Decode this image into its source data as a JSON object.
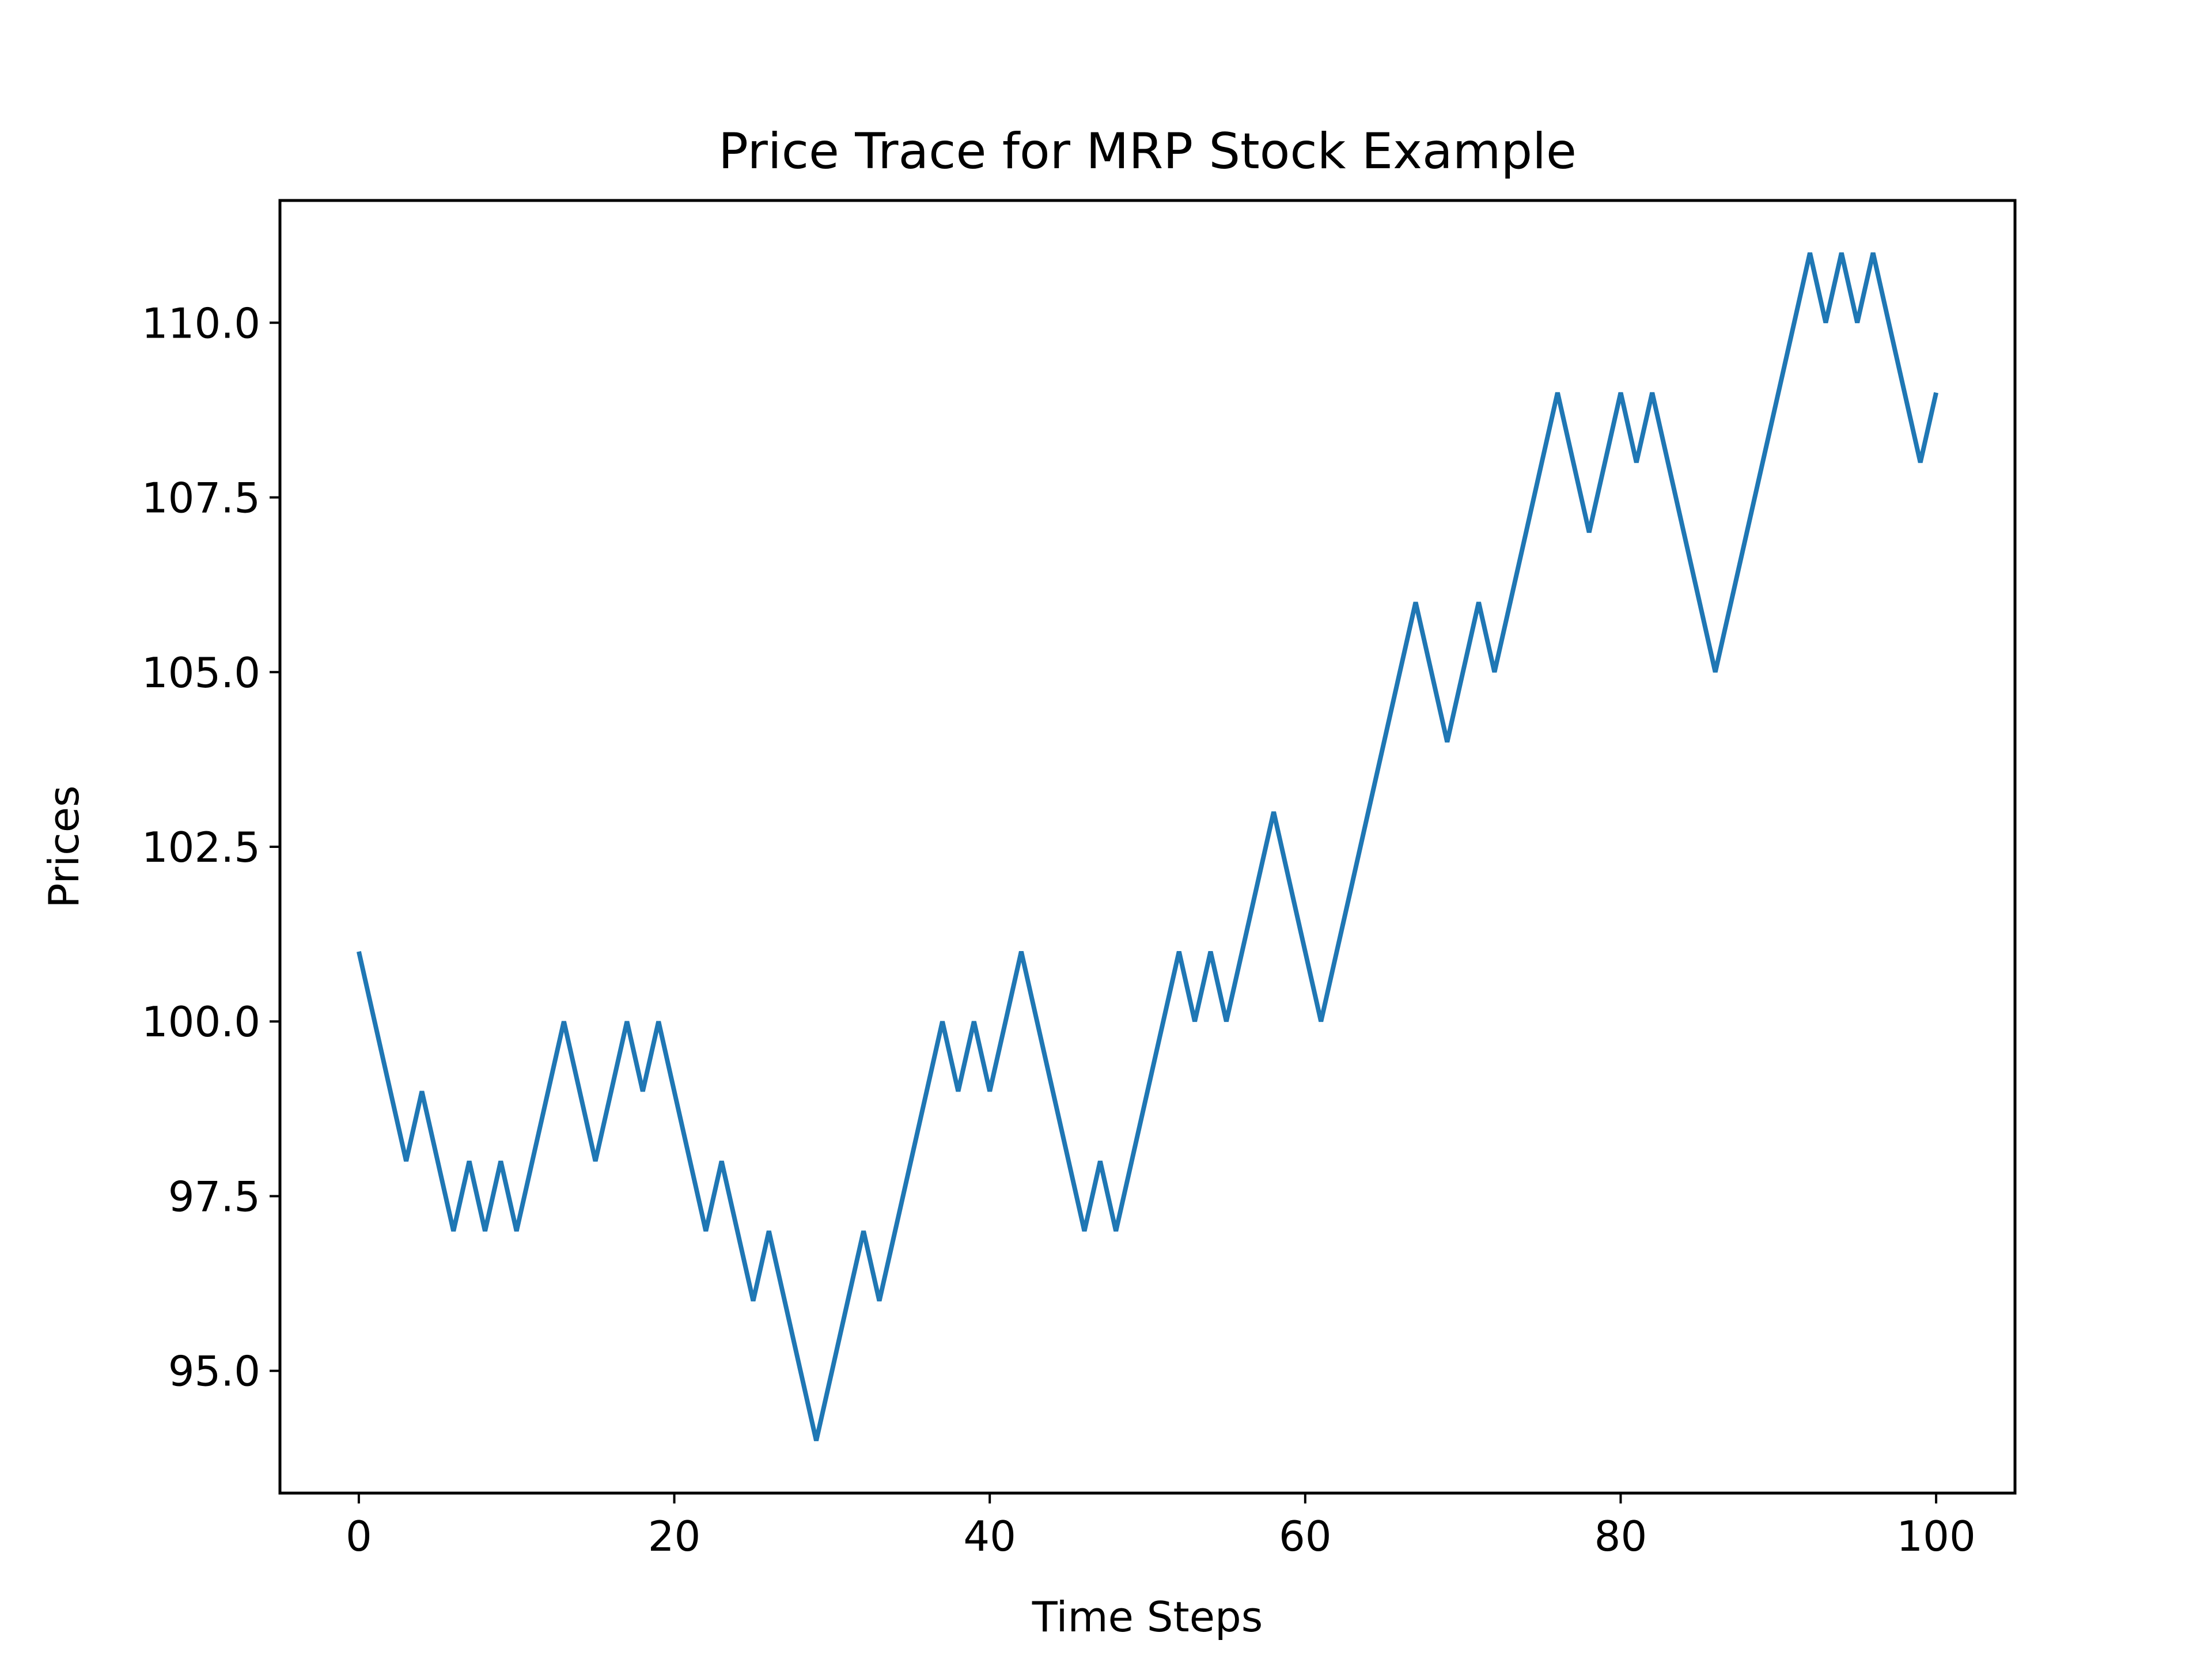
{
  "chart_data": {
    "type": "line",
    "title": "Price Trace for MRP Stock Example",
    "xlabel": "Time Steps",
    "ylabel": "Prices",
    "xlim": [
      -5,
      105
    ],
    "ylim": [
      93.25,
      111.75
    ],
    "xticks": [
      0,
      20,
      40,
      60,
      80,
      100
    ],
    "xtick_labels": [
      "0",
      "20",
      "40",
      "60",
      "80",
      "100"
    ],
    "yticks": [
      95.0,
      97.5,
      100.0,
      102.5,
      105.0,
      107.5,
      110.0
    ],
    "ytick_labels": [
      "95.0",
      "97.5",
      "100.0",
      "102.5",
      "105.0",
      "107.5",
      "110.0"
    ],
    "grid": false,
    "legend": "none",
    "series_color": "#1f77b4",
    "series": [
      {
        "x": [
          0,
          1,
          2,
          3,
          4,
          5,
          6,
          7,
          8,
          9,
          10,
          11,
          12,
          13,
          14,
          15,
          16,
          17,
          18,
          19,
          20,
          21,
          22,
          23,
          24,
          25,
          26,
          27,
          28,
          29,
          30,
          31,
          32,
          33,
          34,
          35,
          36,
          37,
          38,
          39,
          40,
          41,
          42,
          43,
          44,
          45,
          46,
          47,
          48,
          49,
          50,
          51,
          52,
          53,
          54,
          55,
          56,
          57,
          58,
          59,
          60,
          61,
          62,
          63,
          64,
          65,
          66,
          67,
          68,
          69,
          70,
          71,
          72,
          73,
          74,
          75,
          76,
          77,
          78,
          79,
          80,
          81,
          82,
          83,
          84,
          85,
          86,
          87,
          88,
          89,
          90,
          91,
          92,
          93,
          94,
          95,
          96,
          97,
          98,
          99,
          100
        ],
        "values": [
          101,
          100,
          99,
          98,
          99,
          98,
          97,
          98,
          97,
          98,
          97,
          98,
          99,
          100,
          99,
          98,
          99,
          100,
          99,
          100,
          99,
          98,
          97,
          98,
          97,
          96,
          97,
          96,
          95,
          94,
          95,
          96,
          97,
          96,
          97,
          98,
          99,
          100,
          99,
          100,
          99,
          100,
          101,
          100,
          99,
          98,
          97,
          98,
          97,
          98,
          99,
          100,
          101,
          100,
          101,
          100,
          101,
          102,
          103,
          102,
          101,
          100,
          101,
          102,
          103,
          104,
          105,
          106,
          105,
          104,
          105,
          106,
          105,
          106,
          107,
          108,
          109,
          108,
          107,
          108,
          109,
          108,
          109,
          108,
          107,
          106,
          105,
          106,
          107,
          108,
          109,
          110,
          111,
          110,
          111,
          110,
          111,
          110,
          109,
          108,
          109
        ]
      }
    ]
  }
}
